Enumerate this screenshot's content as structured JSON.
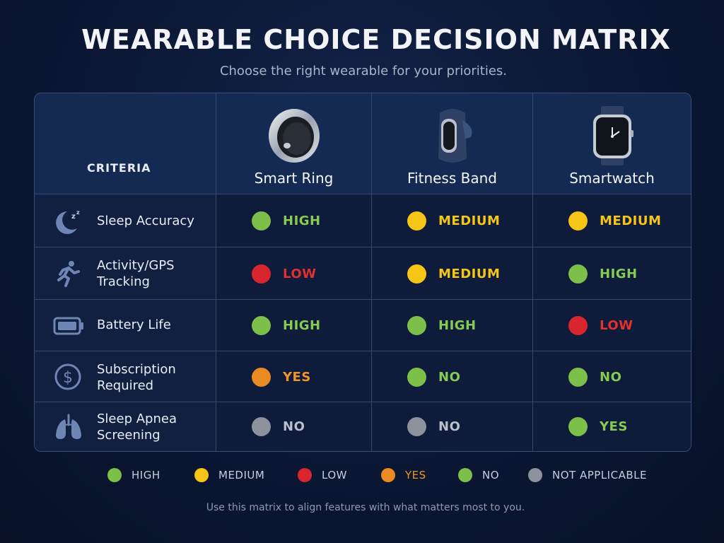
{
  "title": "WEARABLE CHOICE DECISION MATRIX",
  "subtitle": "Choose the right wearable for your priorities.",
  "colors": {
    "HIGH": "#7cc04a",
    "MEDIUM": "#f5c518",
    "LOW": "#d9262e",
    "YES_warning": "#e98b22",
    "NO": "#7cc04a",
    "NA": "#8d939c",
    "label_high": "#86cc50",
    "label_medium": "#f5c518",
    "label_low": "#e0312f",
    "label_yes_warning": "#f0952a",
    "label_na": "#b9c0cb"
  },
  "matrix": {
    "criteria_header": "CRITERIA",
    "devices": [
      {
        "name": "Smart Ring",
        "icon": "smart-ring-icon"
      },
      {
        "name": "Fitness Band",
        "icon": "fitness-band-icon"
      },
      {
        "name": "Smartwatch",
        "icon": "smartwatch-icon"
      }
    ],
    "rows": [
      {
        "criterion": "Sleep Accuracy",
        "icon": "moon-sleep-icon",
        "ratings": [
          {
            "value": "HIGH",
            "color": "#7cc04a",
            "label_color": "#86cc50"
          },
          {
            "value": "MEDIUM",
            "color": "#f5c518",
            "label_color": "#f5c518"
          },
          {
            "value": "MEDIUM",
            "color": "#f5c518",
            "label_color": "#f5c518"
          }
        ]
      },
      {
        "criterion": "Activity/GPS\nTracking",
        "icon": "running-person-icon",
        "ratings": [
          {
            "value": "LOW",
            "color": "#d9262e",
            "label_color": "#e0312f"
          },
          {
            "value": "MEDIUM",
            "color": "#f5c518",
            "label_color": "#f5c518"
          },
          {
            "value": "HIGH",
            "color": "#7cc04a",
            "label_color": "#86cc50"
          }
        ]
      },
      {
        "criterion": "Battery Life",
        "icon": "battery-icon",
        "ratings": [
          {
            "value": "HIGH",
            "color": "#7cc04a",
            "label_color": "#86cc50"
          },
          {
            "value": "HIGH",
            "color": "#7cc04a",
            "label_color": "#86cc50"
          },
          {
            "value": "LOW",
            "color": "#d9262e",
            "label_color": "#e0312f"
          }
        ]
      },
      {
        "criterion": "Subscription\nRequired",
        "icon": "dollar-circle-icon",
        "ratings": [
          {
            "value": "YES",
            "color": "#e98b22",
            "label_color": "#f0952a"
          },
          {
            "value": "NO",
            "color": "#7cc04a",
            "label_color": "#86cc50"
          },
          {
            "value": "NO",
            "color": "#7cc04a",
            "label_color": "#86cc50"
          }
        ]
      },
      {
        "criterion": "Sleep Apnea\nScreening",
        "icon": "lungs-icon",
        "ratings": [
          {
            "value": "NO",
            "color": "#8d939c",
            "label_color": "#b9c0cb"
          },
          {
            "value": "NO",
            "color": "#8d939c",
            "label_color": "#b9c0cb"
          },
          {
            "value": "YES",
            "color": "#7cc04a",
            "label_color": "#86cc50"
          }
        ]
      }
    ]
  },
  "legend": [
    {
      "label": "HIGH",
      "color": "#7cc04a",
      "label_color": "#c6cedd"
    },
    {
      "label": "MEDIUM",
      "color": "#f5c518",
      "label_color": "#c6cedd"
    },
    {
      "label": "LOW",
      "color": "#d9262e",
      "label_color": "#c6cedd"
    },
    {
      "label": "YES",
      "color": "#e98b22",
      "label_color": "#f0952a"
    },
    {
      "label": "NO",
      "color": "#7cc04a",
      "label_color": "#c6cedd"
    },
    {
      "label": "NOT APPLICABLE",
      "color": "#8d939c",
      "label_color": "#c6cedd"
    }
  ],
  "footer": "Use this matrix to align features with what matters most to you."
}
